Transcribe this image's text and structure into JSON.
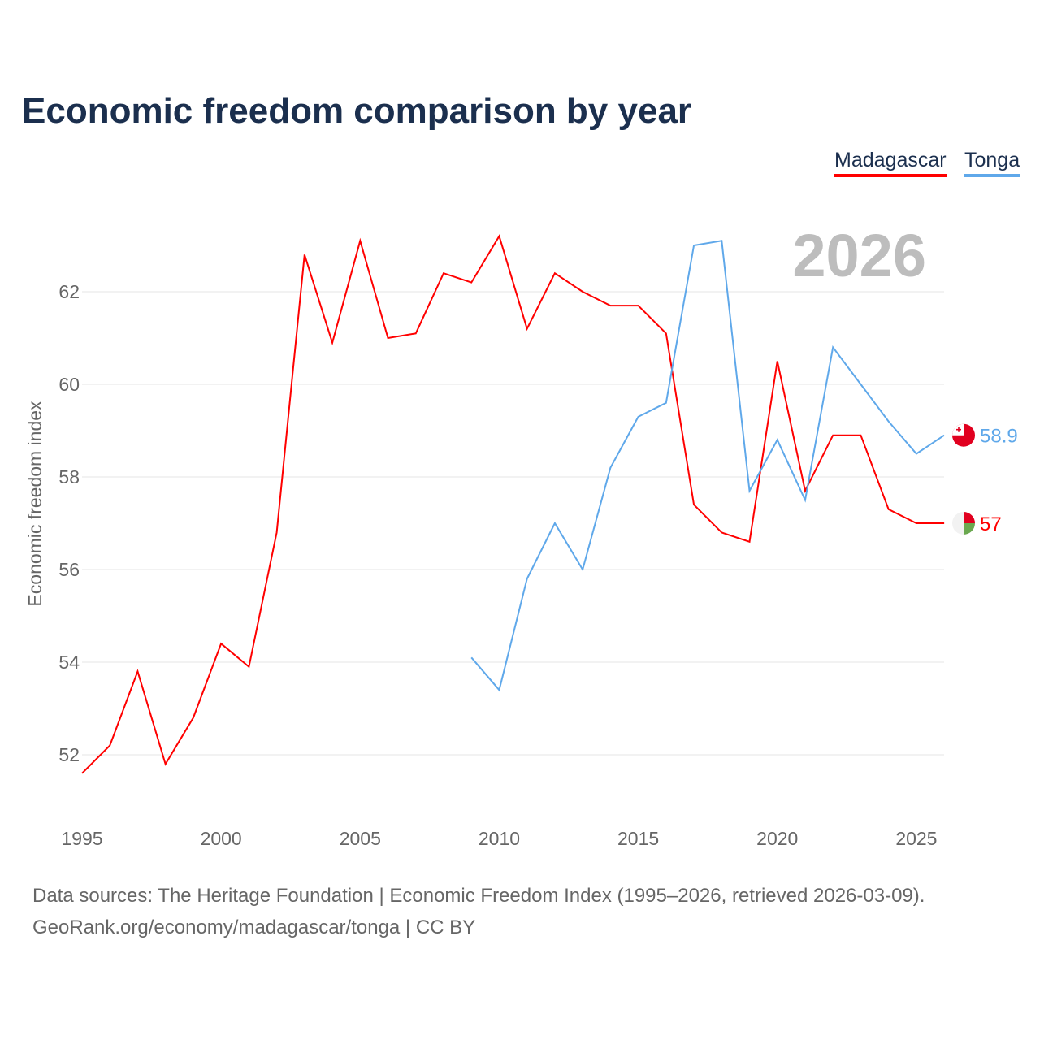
{
  "title": "Economic freedom comparison by year",
  "legend": [
    {
      "label": "Madagascar",
      "color": "#ff0000"
    },
    {
      "label": "Tonga",
      "color": "#5fa8ea"
    }
  ],
  "year_watermark": "2026",
  "sources": {
    "line1": "Data sources: The Heritage Foundation | Economic Freedom Index (1995–2026, retrieved 2026-03-09).",
    "line2": "GeoRank.org/economy/madagascar/tonga | CC BY"
  },
  "chart_data": {
    "type": "line",
    "title": "Economic freedom comparison by year",
    "xlabel": "",
    "ylabel": "Economic freedom index",
    "xlim": [
      1995,
      2026
    ],
    "ylim": [
      51,
      64
    ],
    "xticks": [
      1995,
      2000,
      2005,
      2010,
      2015,
      2020,
      2025
    ],
    "yticks": [
      52,
      54,
      56,
      58,
      60,
      62
    ],
    "grid": true,
    "legend_position": "top-right",
    "series": [
      {
        "name": "Madagascar",
        "color": "#ff0000",
        "end_label": "57",
        "x": [
          1995,
          1996,
          1997,
          1998,
          1999,
          2000,
          2001,
          2002,
          2003,
          2004,
          2005,
          2006,
          2007,
          2008,
          2009,
          2010,
          2011,
          2012,
          2013,
          2014,
          2015,
          2016,
          2017,
          2018,
          2019,
          2020,
          2021,
          2022,
          2023,
          2024,
          2025,
          2026
        ],
        "values": [
          51.6,
          52.2,
          53.8,
          51.8,
          52.8,
          54.4,
          53.9,
          56.8,
          62.8,
          60.9,
          63.1,
          61.0,
          61.1,
          62.4,
          62.2,
          63.2,
          61.2,
          62.4,
          62.0,
          61.7,
          61.7,
          61.1,
          57.4,
          56.8,
          56.6,
          60.5,
          57.7,
          58.9,
          58.9,
          57.3,
          57.0,
          57.0
        ]
      },
      {
        "name": "Tonga",
        "color": "#5fa8ea",
        "end_label": "58.9",
        "x": [
          2009,
          2010,
          2011,
          2012,
          2013,
          2014,
          2015,
          2016,
          2017,
          2018,
          2019,
          2020,
          2021,
          2022,
          2023,
          2024,
          2025,
          2026
        ],
        "values": [
          54.1,
          53.4,
          55.8,
          57.0,
          56.0,
          58.2,
          59.3,
          59.6,
          63.0,
          63.1,
          57.7,
          58.8,
          57.5,
          60.8,
          60.0,
          59.2,
          58.5,
          58.9
        ]
      }
    ]
  }
}
